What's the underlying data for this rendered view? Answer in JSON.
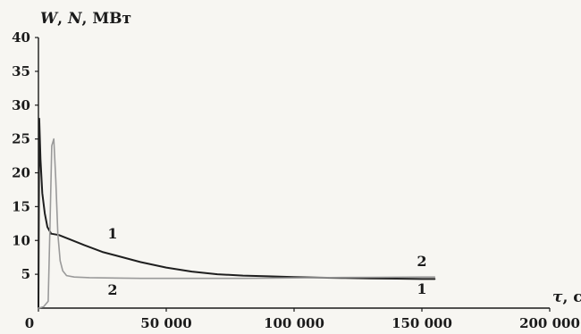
{
  "chart_data": {
    "type": "line",
    "ylabel_parts": [
      "W",
      ", ",
      "N",
      ",  МВт"
    ],
    "xlabel_parts": [
      "τ",
      ", с"
    ],
    "xlim": [
      0,
      200000
    ],
    "ylim": [
      0,
      40
    ],
    "x_ticks": [
      {
        "value": 0,
        "label": "0"
      },
      {
        "value": 50000,
        "label": "50 000"
      },
      {
        "value": 100000,
        "label": "100 000"
      },
      {
        "value": 150000,
        "label": "150 000"
      },
      {
        "value": 200000,
        "label": "200 000"
      }
    ],
    "y_ticks": [
      {
        "value": 5,
        "label": "5"
      },
      {
        "value": 10,
        "label": "10"
      },
      {
        "value": 15,
        "label": "15"
      },
      {
        "value": 20,
        "label": "20"
      },
      {
        "value": 25,
        "label": "25"
      },
      {
        "value": 30,
        "label": "30"
      },
      {
        "value": 35,
        "label": "35"
      },
      {
        "value": 40,
        "label": "40"
      }
    ],
    "grid": false,
    "series": [
      {
        "name": "1",
        "color": "#1f1f1f",
        "x": [
          0,
          300,
          800,
          1500,
          2500,
          3500,
          5000,
          8000,
          12000,
          18000,
          25000,
          30000,
          40000,
          50000,
          60000,
          70000,
          80000,
          90000,
          100000,
          110000,
          120000,
          130000,
          140000,
          150000,
          155000
        ],
        "y": [
          0,
          28,
          22,
          17,
          14,
          12,
          11,
          10.8,
          10.2,
          9.3,
          8.3,
          7.8,
          6.8,
          6.0,
          5.4,
          5.0,
          4.8,
          4.7,
          4.6,
          4.5,
          4.45,
          4.4,
          4.35,
          4.3,
          4.3
        ],
        "labels": [
          {
            "text": "1",
            "x": 29000,
            "y": 10.3
          },
          {
            "text": "1",
            "x": 150000,
            "y": 2.1
          }
        ]
      },
      {
        "name": "2",
        "color": "#9a9a9a",
        "x": [
          0,
          2000,
          3800,
          4500,
          5200,
          6000,
          6800,
          7600,
          8500,
          9500,
          11000,
          14000,
          20000,
          40000,
          80000,
          110000,
          130000,
          150000,
          155000
        ],
        "y": [
          0,
          0.2,
          1,
          12,
          24,
          25,
          19,
          11,
          7,
          5.5,
          4.8,
          4.6,
          4.5,
          4.4,
          4.4,
          4.5,
          4.55,
          4.6,
          4.6
        ],
        "labels": [
          {
            "text": "2",
            "x": 29000,
            "y": 2.0
          },
          {
            "text": "2",
            "x": 150000,
            "y": 6.2
          }
        ]
      }
    ]
  }
}
